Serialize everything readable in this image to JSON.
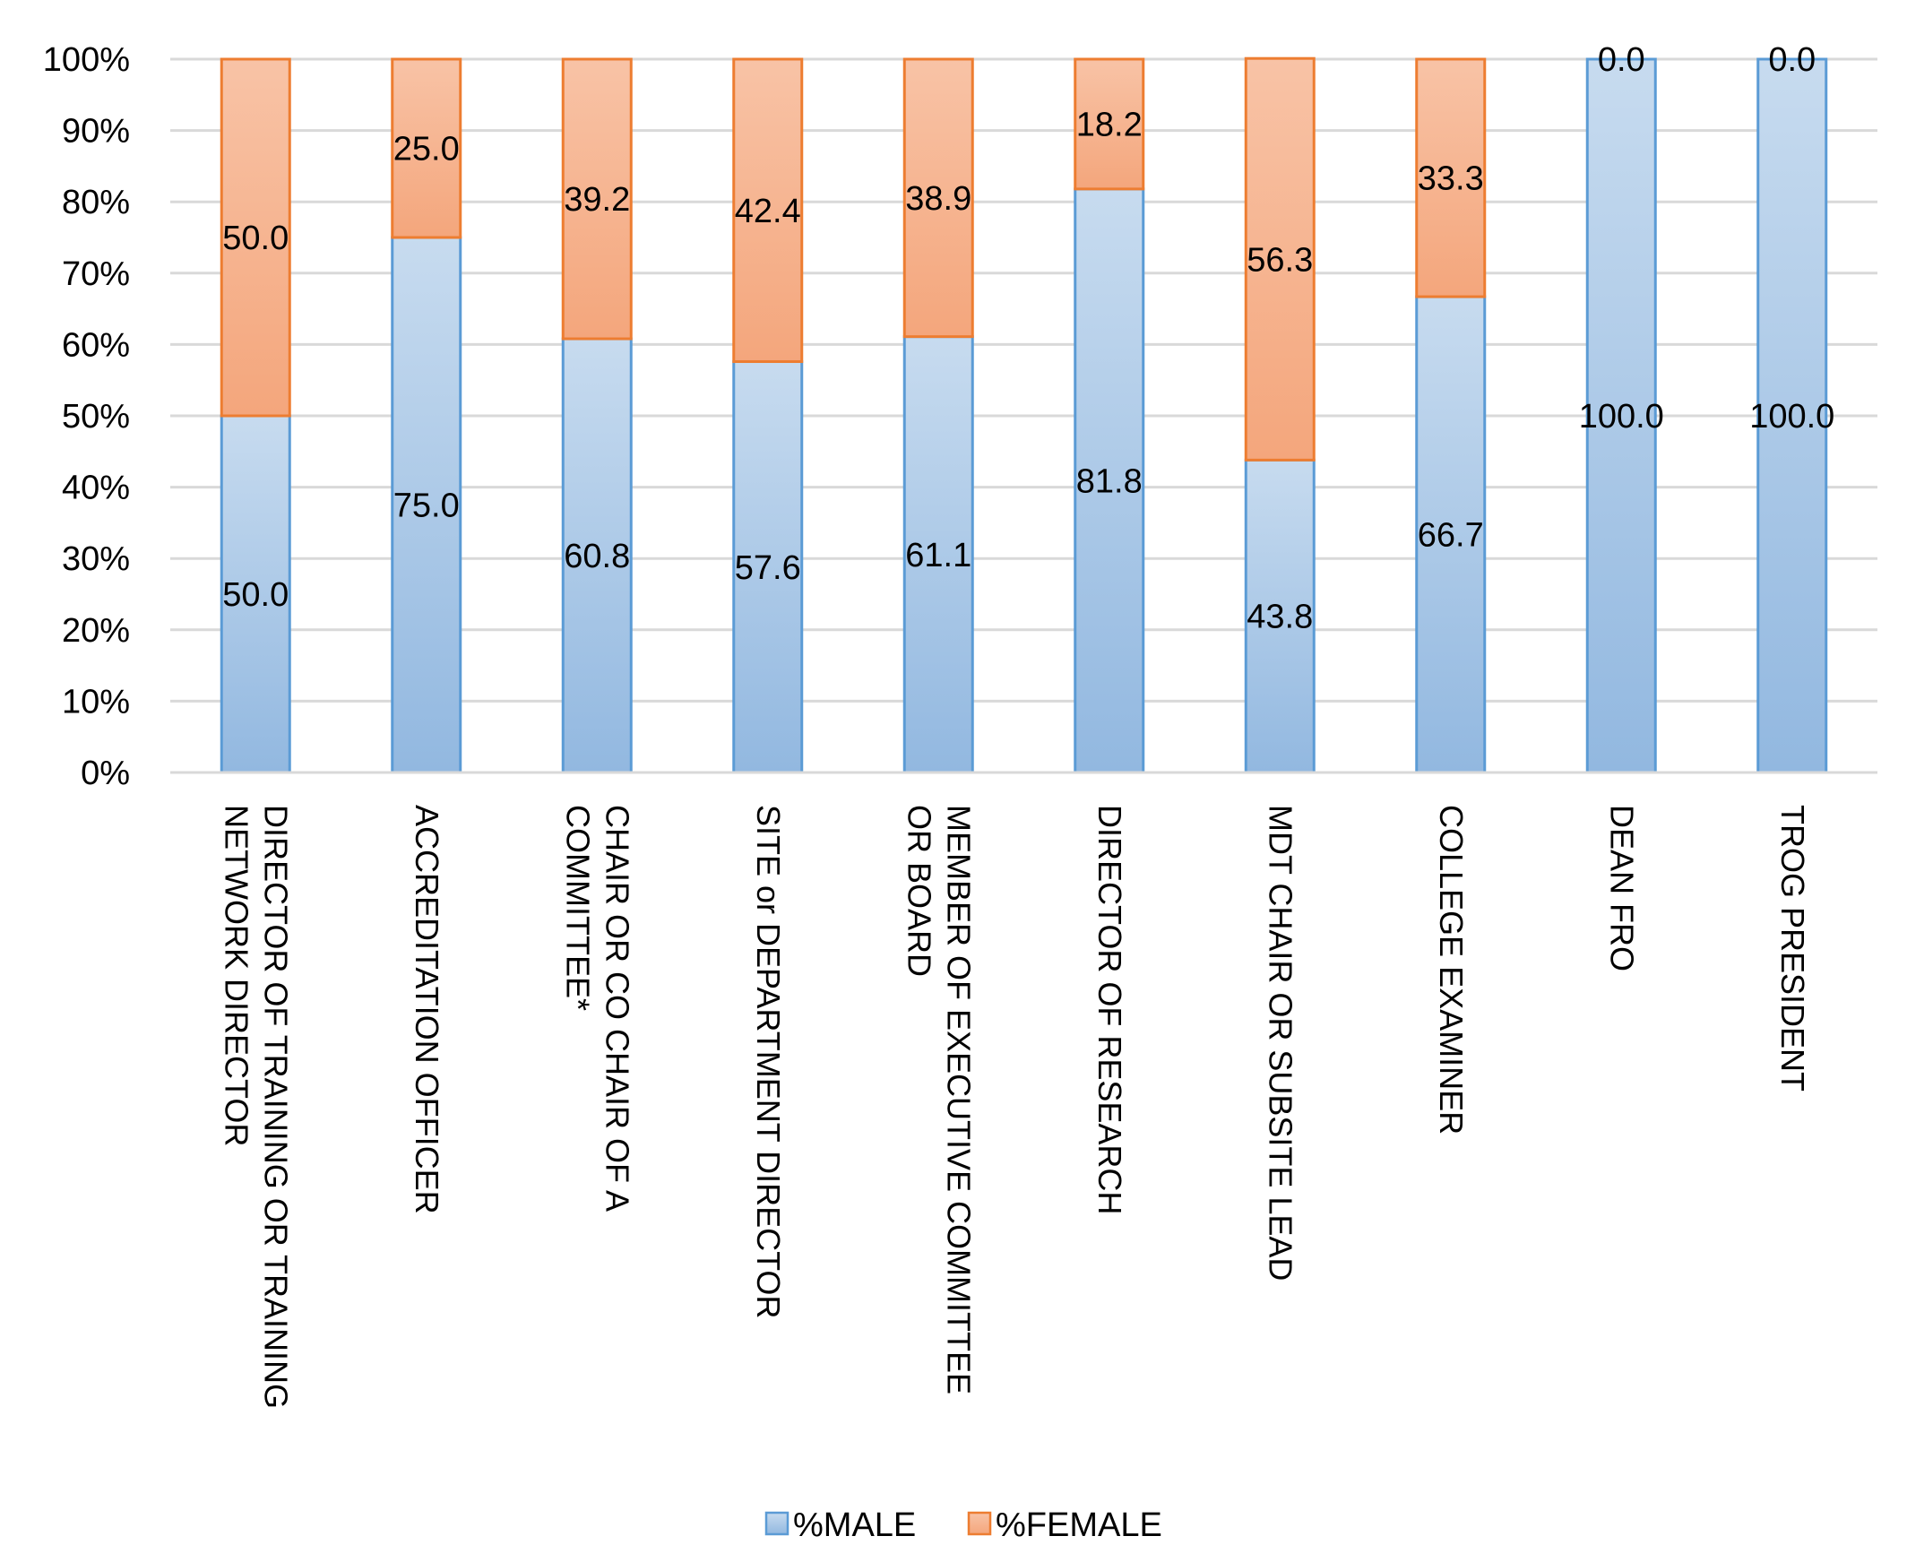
{
  "chart_data": {
    "type": "bar",
    "stacked": true,
    "percent_stacked": true,
    "categories": [
      "DIRECTOR OF TRAINING OR TRAINING NETWORK DIRECTOR",
      "ACCREDITATION OFFICER",
      "CHAIR OR CO CHAIR  OF A COMMITTEE*",
      "SITE or DEPARTMENT DIRECTOR",
      "MEMBER OF EXECUTIVE COMMITTEE OR BOARD",
      "DIRECTOR OF RESEARCH",
      "MDT CHAIR OR SUBSITE LEAD",
      "COLLEGE EXAMINER",
      "DEAN FRO",
      "TROG PRESIDENT"
    ],
    "category_lines": [
      [
        "DIRECTOR OF TRAINING OR TRAINING",
        "NETWORK DIRECTOR"
      ],
      [
        "ACCREDITATION OFFICER"
      ],
      [
        "CHAIR OR CO CHAIR  OF A",
        "COMMITTEE*"
      ],
      [
        "SITE or DEPARTMENT DIRECTOR"
      ],
      [
        "MEMBER OF EXECUTIVE COMMITTEE",
        "OR BOARD"
      ],
      [
        "DIRECTOR OF RESEARCH"
      ],
      [
        "MDT CHAIR OR SUBSITE LEAD"
      ],
      [
        "COLLEGE EXAMINER"
      ],
      [
        "DEAN FRO"
      ],
      [
        "TROG PRESIDENT"
      ]
    ],
    "series": [
      {
        "name": "%MALE",
        "color": "#9dc3e6",
        "edge": "#5b9bd5",
        "values": [
          50.0,
          75.0,
          60.8,
          57.6,
          61.1,
          81.8,
          43.8,
          66.7,
          100.0,
          100.0
        ],
        "labels": [
          "50.0",
          "75.0",
          "60.8",
          "57.6",
          "61.1",
          "81.8",
          "43.8",
          "66.7",
          "100.0",
          "100.0"
        ]
      },
      {
        "name": "%FEMALE",
        "color": "#f4b183",
        "edge": "#ed7d31",
        "values": [
          50.0,
          25.0,
          39.2,
          42.4,
          38.9,
          18.2,
          56.3,
          33.3,
          0.0,
          0.0
        ],
        "labels": [
          "50.0",
          "25.0",
          "39.2",
          "42.4",
          "38.9",
          "18.2",
          "56.3",
          "33.3",
          "0.0",
          "0.0"
        ]
      }
    ],
    "y_ticks": [
      "0%",
      "10%",
      "20%",
      "30%",
      "40%",
      "50%",
      "60%",
      "70%",
      "80%",
      "90%",
      "100%"
    ],
    "ylim": [
      0,
      100
    ],
    "grid": true,
    "legend_position": "bottom",
    "title": "",
    "xlabel": "",
    "ylabel": ""
  }
}
